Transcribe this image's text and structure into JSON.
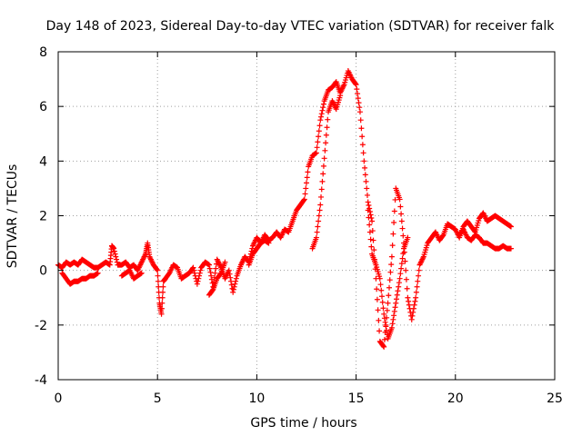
{
  "chart_data": {
    "type": "scatter",
    "title": "Day 148 of 2023, Sidereal Day-to-day VTEC variation (SDTVAR) for receiver falk",
    "xlabel": "GPS time / hours",
    "ylabel": "SDTVAR / TECUs",
    "xlim": [
      0,
      25
    ],
    "ylim": [
      -4,
      8
    ],
    "xticks": [
      "0",
      "5",
      "10",
      "15",
      "20",
      "25"
    ],
    "yticks": [
      "-4",
      "-2",
      "0",
      "2",
      "4",
      "6",
      "8"
    ],
    "grid": true,
    "marker": "+",
    "color": "#ff0000",
    "series": [
      {
        "name": "SDTVAR",
        "x": [
          0.0,
          0.2,
          0.4,
          0.6,
          0.8,
          1.0,
          1.2,
          1.4,
          1.6,
          1.8,
          2.0,
          2.2,
          2.4,
          2.6,
          2.7,
          2.8,
          3.0,
          3.2,
          3.4,
          3.6,
          3.8,
          4.0,
          4.2,
          4.4,
          4.5,
          4.6,
          4.8,
          5.0,
          5.1,
          5.2,
          5.3,
          5.4,
          5.6,
          5.8,
          6.0,
          6.2,
          6.4,
          6.6,
          6.8,
          7.0,
          7.2,
          7.4,
          7.6,
          7.8,
          8.0,
          8.2,
          8.4,
          8.6,
          8.8,
          9.0,
          9.2,
          9.4,
          9.6,
          9.8,
          10.0,
          10.2,
          10.4,
          10.6,
          10.8,
          11.0,
          11.2,
          11.4,
          11.6,
          11.8,
          12.0,
          12.2,
          12.4,
          12.6,
          12.8,
          13.0,
          13.2,
          13.4,
          13.6,
          13.8,
          14.0,
          14.2,
          14.4,
          14.6,
          14.8,
          15.0,
          15.2,
          15.4,
          15.6,
          15.8,
          16.0,
          16.2,
          16.4,
          16.6,
          16.8,
          17.0,
          17.2,
          17.4,
          17.6,
          17.8,
          18.0,
          18.2,
          18.4,
          18.6,
          18.8,
          19.0,
          19.2,
          19.4,
          19.6,
          19.8,
          20.0,
          20.2,
          20.4,
          20.6,
          20.8,
          21.0,
          21.2,
          21.4,
          21.6,
          21.8,
          22.0,
          22.2,
          22.4,
          22.6,
          22.8
        ],
        "y": [
          0.2,
          0.1,
          0.3,
          0.2,
          0.3,
          0.2,
          0.4,
          0.3,
          0.2,
          0.1,
          0.1,
          0.2,
          0.3,
          0.2,
          0.9,
          0.8,
          0.2,
          0.2,
          0.3,
          0.1,
          0.2,
          0.0,
          0.3,
          0.6,
          1.0,
          0.5,
          0.2,
          0.0,
          -1.2,
          -1.6,
          -0.4,
          -0.3,
          -0.1,
          0.2,
          0.1,
          -0.3,
          -0.2,
          -0.1,
          0.1,
          -0.5,
          0.1,
          0.3,
          0.2,
          -0.6,
          0.4,
          0.1,
          -0.3,
          0.0,
          -0.8,
          -0.2,
          0.2,
          0.5,
          0.3,
          0.9,
          1.2,
          1.0,
          1.3,
          1.1,
          1.2,
          1.4,
          1.2,
          1.5,
          1.4,
          1.8,
          2.2,
          2.4,
          2.6,
          3.8,
          4.2,
          4.3,
          5.5,
          6.2,
          6.6,
          6.7,
          6.9,
          6.5,
          6.8,
          7.3,
          7.0,
          6.8,
          5.8,
          4.0,
          2.5,
          1.8,
          -0.3,
          -2.6,
          -2.8,
          -1.2,
          0.5,
          3.0,
          2.6,
          1.0,
          -1.0,
          -1.8,
          -1.0,
          0.2,
          0.5,
          1.0,
          1.2,
          1.4,
          1.1,
          1.3,
          1.7,
          1.6,
          1.5,
          1.2,
          1.6,
          1.8,
          1.6,
          1.4,
          1.9,
          2.1,
          1.8,
          1.9,
          2.0,
          1.9,
          1.8,
          1.7,
          1.6
        ],
        "x2": [
          0.2,
          0.4,
          0.6,
          0.8,
          1.0,
          1.2,
          1.4,
          1.6,
          1.8,
          2.0,
          3.2,
          3.4,
          3.6,
          3.8,
          4.0,
          4.2,
          7.6,
          7.8,
          8.0,
          8.2,
          8.4,
          9.6,
          9.8,
          10.0,
          10.2,
          10.4,
          10.6,
          12.8,
          13.0,
          13.2,
          13.4,
          13.6,
          13.8,
          14.0,
          14.2,
          15.6,
          15.8,
          16.0,
          16.2,
          16.4,
          16.6,
          16.8,
          17.0,
          17.2,
          17.4,
          17.6,
          20.2,
          20.4,
          20.6,
          20.8,
          21.0,
          21.2,
          21.4,
          21.6,
          21.8,
          22.0,
          22.2,
          22.4,
          22.6,
          22.8
        ],
        "y2": [
          -0.1,
          -0.3,
          -0.5,
          -0.4,
          -0.4,
          -0.3,
          -0.3,
          -0.2,
          -0.2,
          -0.1,
          -0.2,
          -0.1,
          0.0,
          -0.3,
          -0.2,
          -0.1,
          -0.9,
          -0.7,
          -0.3,
          -0.1,
          0.3,
          0.2,
          0.6,
          0.8,
          1.0,
          1.1,
          1.0,
          0.8,
          1.2,
          2.4,
          4.1,
          5.8,
          6.2,
          5.9,
          6.4,
          2.2,
          0.6,
          0.2,
          -0.3,
          -1.6,
          -2.5,
          -2.1,
          -1.2,
          -0.3,
          0.8,
          1.2,
          1.3,
          1.5,
          1.2,
          1.1,
          1.3,
          1.2,
          1.0,
          1.0,
          0.9,
          0.8,
          0.8,
          0.9,
          0.8,
          0.8
        ]
      }
    ]
  }
}
